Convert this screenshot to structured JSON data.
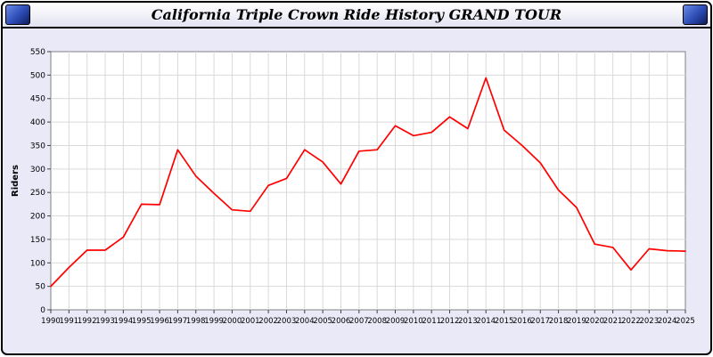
{
  "window": {
    "title": "California Triple Crown Ride History GRAND TOUR"
  },
  "colors": {
    "line": "#ff0000",
    "window_background": "#e9e9f8",
    "titlebar_square": "#2b4bb3",
    "plot_background": "#ffffff",
    "gridline": "#d9d9d9",
    "plot_border": "#808080",
    "tick": "#404040"
  },
  "chart_data": {
    "type": "line",
    "title": "California Triple Crown Ride History GRAND TOUR",
    "ylabel": "Riders",
    "xlabel": "",
    "ylim": [
      0,
      550
    ],
    "ytick_step": 50,
    "grid": true,
    "legend": "none",
    "categories": [
      "1990",
      "1991",
      "1992",
      "1993",
      "1994",
      "1995",
      "1996",
      "1997",
      "1998",
      "1999",
      "2000",
      "2001",
      "2002",
      "2003",
      "2004",
      "2005",
      "2006",
      "2007",
      "2008",
      "2009",
      "2010",
      "2011",
      "2012",
      "2013",
      "2014",
      "2015",
      "2016",
      "2017",
      "2018",
      "2019",
      "2020",
      "2021",
      "2022",
      "2023",
      "2024",
      "2025"
    ],
    "series": [
      {
        "name": "Riders",
        "color": "#ff0000",
        "values": [
          50,
          90,
          127,
          127,
          155,
          225,
          224,
          341,
          285,
          248,
          213,
          210,
          265,
          280,
          341,
          315,
          268,
          338,
          341,
          392,
          371,
          378,
          411,
          386,
          494,
          383,
          350,
          313,
          255,
          218,
          140,
          133,
          85,
          130,
          126,
          125
        ]
      }
    ]
  }
}
